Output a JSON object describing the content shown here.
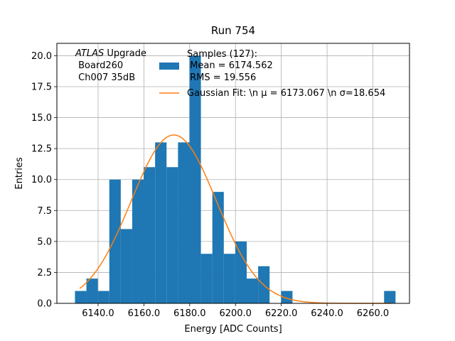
{
  "chart_data": {
    "type": "bar",
    "title": "Run 754",
    "xlabel": "Energy [ADC Counts]",
    "ylabel": "Entries",
    "xlim": [
      6122.0,
      6276.0
    ],
    "ylim": [
      0,
      21.0
    ],
    "xticks": [
      6140.0,
      6160.0,
      6180.0,
      6200.0,
      6220.0,
      6240.0,
      6260.0
    ],
    "xtick_labels": [
      "6140.0",
      "6160.0",
      "6180.0",
      "6200.0",
      "6220.0",
      "6240.0",
      "6260.0"
    ],
    "yticks": [
      0.0,
      2.5,
      5.0,
      7.5,
      10.0,
      12.5,
      15.0,
      17.5,
      20.0
    ],
    "ytick_labels": [
      "0.0",
      "2.5",
      "5.0",
      "7.5",
      "10.0",
      "12.5",
      "15.0",
      "17.5",
      "20.0"
    ],
    "grid": true,
    "bin_edges": [
      6129.9,
      6134.9,
      6139.9,
      6144.9,
      6149.9,
      6154.9,
      6159.9,
      6164.9,
      6169.9,
      6174.9,
      6179.9,
      6184.9,
      6189.9,
      6194.9,
      6199.9,
      6204.9,
      6209.9,
      6214.9,
      6219.9,
      6224.9,
      6229.9,
      6234.9,
      6239.9,
      6244.9,
      6249.9,
      6254.9,
      6259.9,
      6264.9,
      6269.9
    ],
    "counts": [
      1,
      2,
      1,
      10,
      6,
      10,
      11,
      13,
      11,
      13,
      20,
      4,
      9,
      4,
      5,
      2,
      3,
      0,
      1,
      0,
      0,
      0,
      0,
      0,
      0,
      0,
      0,
      1
    ],
    "fit": {
      "mu": 6173.067,
      "sigma": 18.654,
      "amplitude": 13.6,
      "x_range": [
        6132.0,
        6268.0
      ]
    },
    "colors": {
      "histogram": "#1f77b4",
      "fit": "#ff7f0e",
      "grid": "#b0b0b0"
    },
    "annotation": {
      "lines": [
        "ATLAS Upgrade",
        " Board260",
        " Ch007 35dB"
      ]
    },
    "legend": {
      "position": "top-right",
      "histogram_lines": [
        "Samples (127):",
        " Mean = 6174.562",
        " RMS = 19.556"
      ],
      "fit_label": "Gaussian Fit: \\n μ = 6173.067 \\n σ=18.654"
    }
  }
}
